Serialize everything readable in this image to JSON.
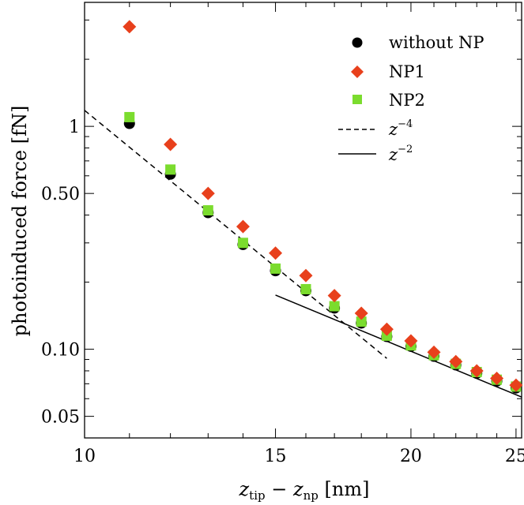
{
  "chart_data": {
    "type": "scatter",
    "title": "",
    "xscale": "log",
    "yscale": "log",
    "xlim": [
      10,
      25.3
    ],
    "ylim": [
      0.04,
      3.6
    ],
    "xlabel": {
      "main1": "z",
      "sub1": "tip",
      "minus": " − ",
      "main2": "z",
      "sub2": "np",
      "unit": " [nm]"
    },
    "ylabel": "photoinduced force [fN]",
    "xticks": [
      {
        "value": 10,
        "label": "10"
      },
      {
        "value": 15,
        "label": "15"
      },
      {
        "value": 20,
        "label": "20"
      },
      {
        "value": 25,
        "label": "25"
      }
    ],
    "yticks": [
      {
        "value": 0.05,
        "label": "0.05"
      },
      {
        "value": 0.1,
        "label": "0.10"
      },
      {
        "value": 0.5,
        "label": "0.50"
      },
      {
        "value": 1,
        "label": "1"
      }
    ],
    "series": [
      {
        "name": "without NP",
        "marker": "circle",
        "color": "#000000",
        "x": [
          11,
          12,
          13,
          14,
          15,
          16,
          17,
          18,
          19,
          20,
          21,
          22,
          23,
          24,
          25
        ],
        "y": [
          1.03,
          0.61,
          0.41,
          0.295,
          0.225,
          0.183,
          0.153,
          0.131,
          0.114,
          0.103,
          0.093,
          0.085,
          0.078,
          0.072,
          0.067
        ]
      },
      {
        "name": "NP1",
        "marker": "diamond",
        "color": "#e8401c",
        "x": [
          11,
          12,
          13,
          14,
          15,
          16,
          17,
          18,
          19,
          20,
          21,
          22,
          23,
          24,
          25
        ],
        "y": [
          2.8,
          0.83,
          0.5,
          0.355,
          0.27,
          0.214,
          0.174,
          0.145,
          0.123,
          0.109,
          0.097,
          0.088,
          0.08,
          0.074,
          0.069
        ]
      },
      {
        "name": "NP2",
        "marker": "square",
        "color": "#7bdc2e",
        "x": [
          11,
          12,
          13,
          14,
          15,
          16,
          17,
          18,
          19,
          20,
          21,
          22,
          23,
          24,
          25
        ],
        "y": [
          1.1,
          0.64,
          0.42,
          0.3,
          0.23,
          0.186,
          0.156,
          0.133,
          0.115,
          0.104,
          0.094,
          0.086,
          0.079,
          0.073,
          0.068
        ]
      }
    ],
    "lines": [
      {
        "name": "z^-4",
        "label_base": "z",
        "label_exp": "−4",
        "style": "dashed",
        "x": [
          10,
          19
        ],
        "y": [
          1.18,
          0.091
        ]
      },
      {
        "name": "z^-2",
        "label_base": "z",
        "label_exp": "−2",
        "style": "solid",
        "x": [
          15,
          25.3
        ],
        "y": [
          0.175,
          0.061
        ]
      }
    ],
    "legend_position": "top-right"
  }
}
